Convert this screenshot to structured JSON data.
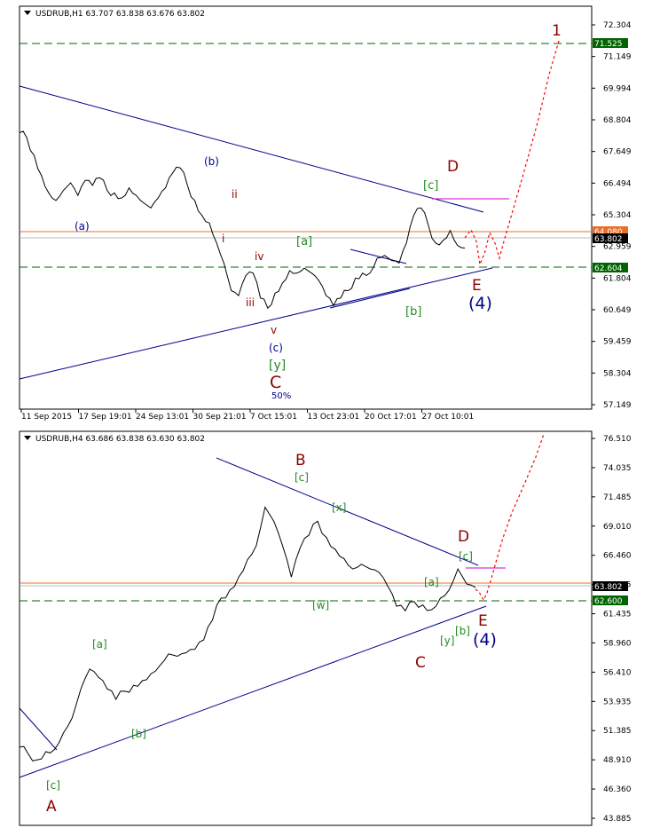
{
  "top": {
    "title": "USDRUB,H1  63.707 63.838 63.676 63.802",
    "y_ticks": [
      "72.304",
      "71.149",
      "69.994",
      "68.804",
      "67.649",
      "66.494",
      "65.304",
      "62.959",
      "61.804",
      "60.649",
      "59.459",
      "58.304",
      "57.149"
    ],
    "x_ticks": [
      "11 Sep 2015",
      "17 Sep 19:01",
      "24 Sep 13:01",
      "30 Sep 21:01",
      "7 Oct 15:01",
      "13 Oct 23:01",
      "20 Oct 17:01",
      "27 Oct 10:01"
    ],
    "tags": {
      "upper_green": "71.525",
      "orange": "64.080",
      "current": "63.802",
      "lower_green": "62.604"
    },
    "labels": {
      "one": "1",
      "D": "D",
      "c_green": "[c]",
      "E": "E",
      "four": "(4)",
      "b_paren": "(b)",
      "a_paren": "(a)",
      "c_paren": "(c)",
      "ii": "ii",
      "i": "i",
      "iv": "iv",
      "iii": "iii",
      "v": "v",
      "a_green": "[a]",
      "b_green": "[b]",
      "y_green": "[y]",
      "C": "C",
      "fifty": "50%"
    }
  },
  "bottom": {
    "title": "USDRUB,H4  63.686 63.838 63.630 63.802",
    "y_ticks": [
      "76.510",
      "74.035",
      "71.485",
      "69.010",
      "66.460",
      "63.985",
      "61.435",
      "58.960",
      "56.410",
      "53.935",
      "51.385",
      "48.910",
      "46.360",
      "43.885"
    ],
    "tags": {
      "current": "63.802",
      "lower_green": "62.600"
    },
    "labels": {
      "B": "B",
      "c_top": "[c]",
      "x": "[x]",
      "w": "[w]",
      "D": "D",
      "c_right": "[c]",
      "a_right": "[a]",
      "y": "[y]",
      "C": "C",
      "b_right": "[b]",
      "E": "E",
      "four": "(4)",
      "a_left": "[a]",
      "b_left": "[b]",
      "c_bottom": "[c]",
      "A": "A"
    }
  },
  "colors": {
    "price": "#000000",
    "trendline": "#00008b",
    "support": "#006400",
    "resistance_orange": "#e8702a",
    "magenta": "#cc00cc",
    "projection": "#ff0000",
    "wave_red": "#8b0000",
    "wave_green": "#228b22",
    "wave_blue": "#00008b"
  },
  "chart_data": [
    {
      "type": "line",
      "title": "USDRUB,H1",
      "ylim": [
        57.149,
        72.304
      ],
      "series": [
        {
          "values": [
            68.0,
            67.8,
            67.1,
            66.3,
            65.6,
            65.3,
            65.7,
            66.0,
            65.5,
            66.1,
            65.9,
            66.2,
            65.7,
            65.6,
            65.4,
            65.8,
            65.5,
            65.2,
            65.0,
            65.4,
            65.8,
            66.4,
            66.6,
            65.9,
            65.3,
            64.7,
            64.4,
            63.6,
            62.8,
            61.7,
            61.5,
            62.3,
            62.4,
            61.4,
            61.0,
            61.6,
            62.0,
            62.5,
            62.4,
            62.6,
            62.4,
            62.1,
            61.5,
            61.1,
            61.4,
            61.7,
            62.2,
            62.4,
            62.4,
            63.0,
            63.1,
            62.9,
            62.8,
            63.6,
            64.7,
            65.0,
            64.3,
            63.6,
            63.7,
            64.1,
            63.5,
            63.4
          ]
        }
      ]
    },
    {
      "type": "line",
      "title": "USDRUB,H4",
      "ylim": [
        43.885,
        76.51
      ],
      "series": [
        {
          "values": [
            50.0,
            49.4,
            48.9,
            49.6,
            49.8,
            51.2,
            52.5,
            55.0,
            56.7,
            56.0,
            55.0,
            54.1,
            54.8,
            55.3,
            55.7,
            56.3,
            57.0,
            58.0,
            57.8,
            58.1,
            58.4,
            59.2,
            60.9,
            62.8,
            63.5,
            64.6,
            66.1,
            67.3,
            70.6,
            69.4,
            67.3,
            64.6,
            67.1,
            68.2,
            69.4,
            68.0,
            67.0,
            66.2,
            65.3,
            65.7,
            65.3,
            65.0,
            63.8,
            62.1,
            61.7,
            62.5,
            62.2,
            61.8,
            62.8,
            63.5,
            65.3,
            64.0,
            63.7
          ]
        }
      ]
    }
  ]
}
